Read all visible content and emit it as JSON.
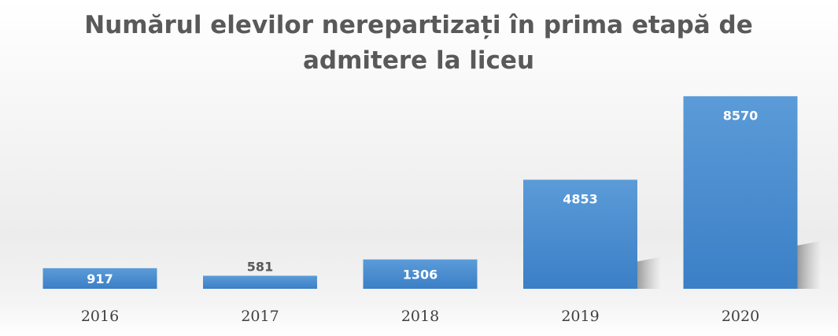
{
  "chart_data": {
    "type": "bar",
    "title_lines": [
      "Numărul elevilor nerepartizați în prima etapă de",
      "admitere la liceu"
    ],
    "categories": [
      "2016",
      "2017",
      "2018",
      "2019",
      "2020"
    ],
    "values": [
      917,
      581,
      1306,
      4853,
      8570
    ],
    "xlabel": "",
    "ylabel": "",
    "ylim": [
      0,
      9000
    ],
    "grid": false,
    "legend": "none",
    "bar_color": "#4a8fd4",
    "data_label_color": "#ffffff",
    "data_label_color_outside": "#595959"
  }
}
